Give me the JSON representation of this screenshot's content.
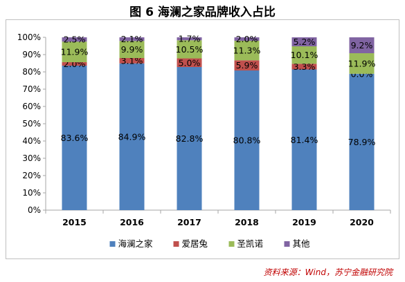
{
  "title": "图 6  海澜之家品牌收入占比",
  "source": "资料来源：Wind，苏宁金融研究院",
  "chart_data": {
    "type": "bar",
    "stacked": true,
    "categories": [
      "2015",
      "2016",
      "2017",
      "2018",
      "2019",
      "2020"
    ],
    "series": [
      {
        "name": "海澜之家",
        "color": "#4f81bd",
        "values": [
          83.6,
          84.9,
          82.8,
          80.8,
          81.4,
          78.9
        ]
      },
      {
        "name": "爱居兔",
        "color": "#c0504d",
        "values": [
          2.0,
          3.1,
          5.0,
          5.9,
          3.3,
          0.0
        ]
      },
      {
        "name": "圣凯诺",
        "color": "#9bbb59",
        "values": [
          11.9,
          9.9,
          10.5,
          11.3,
          10.1,
          11.9
        ]
      },
      {
        "name": "其他",
        "color": "#8064a2",
        "values": [
          2.5,
          2.1,
          1.7,
          2.0,
          5.2,
          9.2
        ]
      }
    ],
    "ylim": [
      0,
      100
    ],
    "yticks": [
      "0%",
      "10%",
      "20%",
      "30%",
      "40%",
      "50%",
      "60%",
      "70%",
      "80%",
      "90%",
      "100%"
    ],
    "grid": false,
    "legend": "bottom"
  }
}
